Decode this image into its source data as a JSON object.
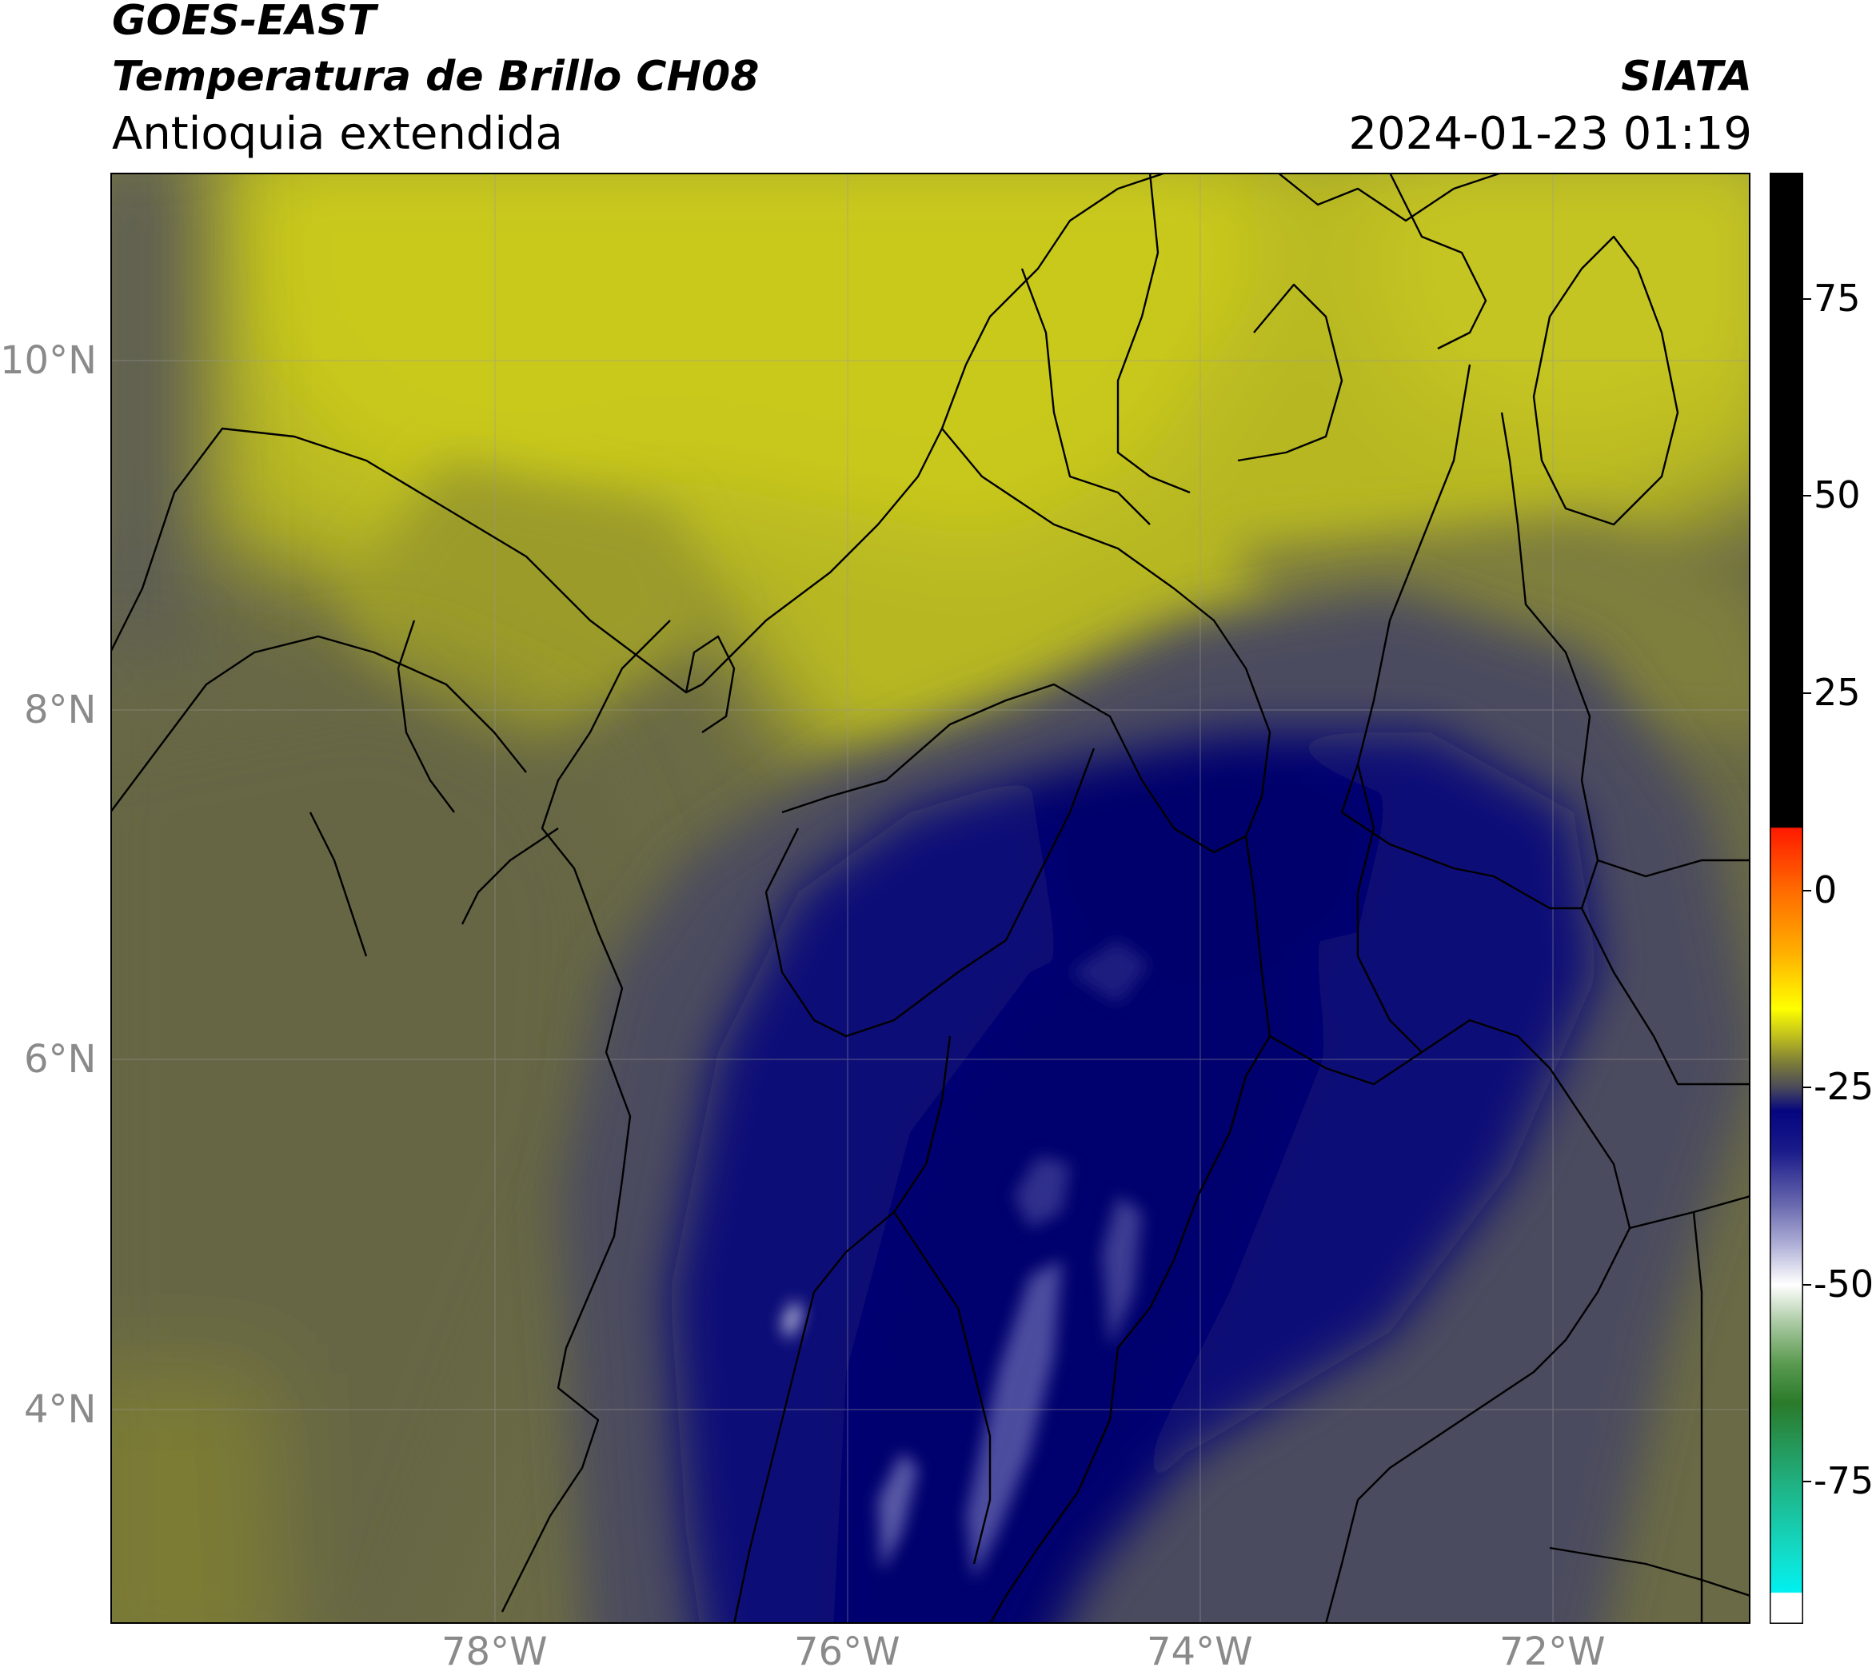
{
  "header": {
    "satellite": "GOES-EAST",
    "product": "Temperatura de Brillo CH08",
    "region": "Antioquia extendida",
    "agency": "SIATA",
    "datetime": "2024-01-23 01:19"
  },
  "map": {
    "lon_range": [
      -80.1,
      -70.8
    ],
    "lat_range": [
      2.7,
      11.0
    ],
    "lat_ticks": [
      {
        "value": 10,
        "label": "10°N"
      },
      {
        "value": 8,
        "label": "8°N"
      },
      {
        "value": 6,
        "label": "6°N"
      },
      {
        "value": 4,
        "label": "4°N"
      }
    ],
    "lon_ticks": [
      {
        "value": -78,
        "label": "78°W"
      },
      {
        "value": -76,
        "label": "76°W"
      },
      {
        "value": -74,
        "label": "74°W"
      },
      {
        "value": -72,
        "label": "72°W"
      }
    ],
    "gridlines": true,
    "colors": {
      "warm_yellow": "#c9c91e",
      "olive": "#8f8f2e",
      "gray_olive": "#626247",
      "slate": "#4b4b60",
      "deep_blue": "#0d0d6e",
      "navy": "#000080",
      "cold_lavender": "#7373b8",
      "border": "#000000"
    }
  },
  "colorbar": {
    "ticks": [
      {
        "value": 75,
        "label": "75"
      },
      {
        "value": 50,
        "label": "50"
      },
      {
        "value": 25,
        "label": "25"
      },
      {
        "value": 0,
        "label": "0"
      },
      {
        "value": -25,
        "label": "-25"
      },
      {
        "value": -50,
        "label": "-50"
      },
      {
        "value": -75,
        "label": "-75"
      }
    ],
    "range": [
      -93,
      91
    ],
    "stops": [
      {
        "v": 91,
        "c": "#000000"
      },
      {
        "v": 8,
        "c": "#000000"
      },
      {
        "v": 7.9,
        "c": "#ff1a00"
      },
      {
        "v": 0,
        "c": "#ff6a00"
      },
      {
        "v": -8,
        "c": "#ffb000"
      },
      {
        "v": -15,
        "c": "#ffff00"
      },
      {
        "v": -18,
        "c": "#c8c81a"
      },
      {
        "v": -22,
        "c": "#7a7a3a"
      },
      {
        "v": -25,
        "c": "#4a4a5a"
      },
      {
        "v": -28,
        "c": "#050580"
      },
      {
        "v": -33,
        "c": "#1a1a8a"
      },
      {
        "v": -40,
        "c": "#6a6ab0"
      },
      {
        "v": -45,
        "c": "#b0b0d8"
      },
      {
        "v": -50,
        "c": "#ffffff"
      },
      {
        "v": -55,
        "c": "#a8c8a0"
      },
      {
        "v": -60,
        "c": "#5a9a50"
      },
      {
        "v": -65,
        "c": "#2a7a2a"
      },
      {
        "v": -75,
        "c": "#20b080"
      },
      {
        "v": -85,
        "c": "#10e0d0"
      },
      {
        "v": -89,
        "c": "#00f0f0"
      },
      {
        "v": -89.1,
        "c": "#ffffff"
      },
      {
        "v": -93,
        "c": "#ffffff"
      }
    ]
  }
}
